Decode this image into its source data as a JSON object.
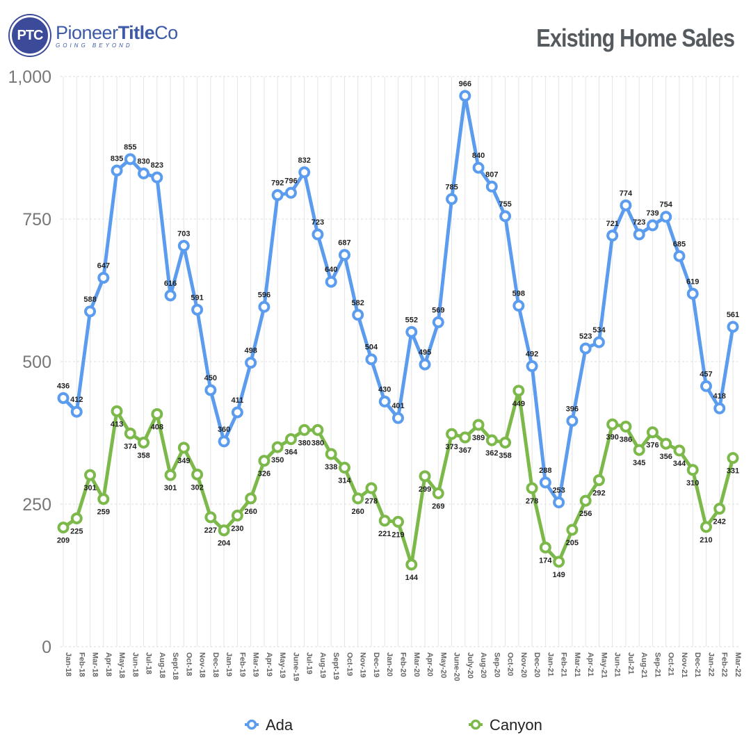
{
  "header": {
    "logo_mark": "PTC",
    "logo_name_a": "Pioneer",
    "logo_name_b": "Title",
    "logo_name_c": "Co",
    "logo_tagline": "GOING BEYOND",
    "title": "Existing Home Sales"
  },
  "chart_data": {
    "type": "line",
    "title": "Existing Home Sales",
    "xlabel": "",
    "ylabel": "",
    "ylim": [
      0,
      1000
    ],
    "yticks": [
      0,
      250,
      500,
      750,
      1000
    ],
    "ytick_labels": [
      "0",
      "250",
      "500",
      "750",
      "1,000"
    ],
    "grid": true,
    "legend_position": "bottom",
    "categories": [
      "Jan-18",
      "Feb-18",
      "Mar-18",
      "Apr-18",
      "May-18",
      "Jun-18",
      "Jul-18",
      "Aug-18",
      "Sept-18",
      "Oct-18",
      "Nov-18",
      "Dec-18",
      "Jan-19",
      "Feb-19",
      "Mar-19",
      "Apr-19",
      "May-19",
      "June-19",
      "Jul-19",
      "Aug-19",
      "Sept-19",
      "Oct-19",
      "Nov-19",
      "Dec-19",
      "Jan-20",
      "Feb-20",
      "Mar-20",
      "Apr-20",
      "May-20",
      "June-20",
      "July-20",
      "Aug-20",
      "Sep-20",
      "Oct-20",
      "Nov-20",
      "Dec-20",
      "Jan-21",
      "Feb-21",
      "Mar-21",
      "Apr-21",
      "May-21",
      "Jun-21",
      "Jul-21",
      "Aug-21",
      "Sep-21",
      "Oct-21",
      "Nov-21",
      "Dec-21",
      "Jan-22",
      "Feb-22",
      "Mar-22"
    ],
    "series": [
      {
        "name": "Ada",
        "color": "#5b9cee",
        "values": [
          436,
          412,
          588,
          647,
          835,
          855,
          830,
          823,
          616,
          703,
          591,
          450,
          360,
          411,
          498,
          596,
          792,
          796,
          832,
          723,
          640,
          687,
          582,
          504,
          430,
          401,
          552,
          495,
          569,
          785,
          966,
          840,
          807,
          755,
          598,
          492,
          288,
          253,
          396,
          523,
          534,
          721,
          774,
          723,
          739,
          754,
          685,
          619,
          457,
          418,
          561
        ]
      },
      {
        "name": "Canyon",
        "color": "#7cb94a",
        "values": [
          209,
          225,
          301,
          259,
          413,
          374,
          358,
          408,
          301,
          349,
          302,
          227,
          204,
          230,
          260,
          326,
          350,
          364,
          380,
          380,
          338,
          314,
          260,
          278,
          221,
          219,
          144,
          299,
          269,
          373,
          367,
          389,
          362,
          358,
          449,
          278,
          174,
          149,
          205,
          256,
          292,
          390,
          386,
          345,
          376,
          356,
          344,
          310,
          210,
          242,
          331
        ]
      }
    ]
  }
}
